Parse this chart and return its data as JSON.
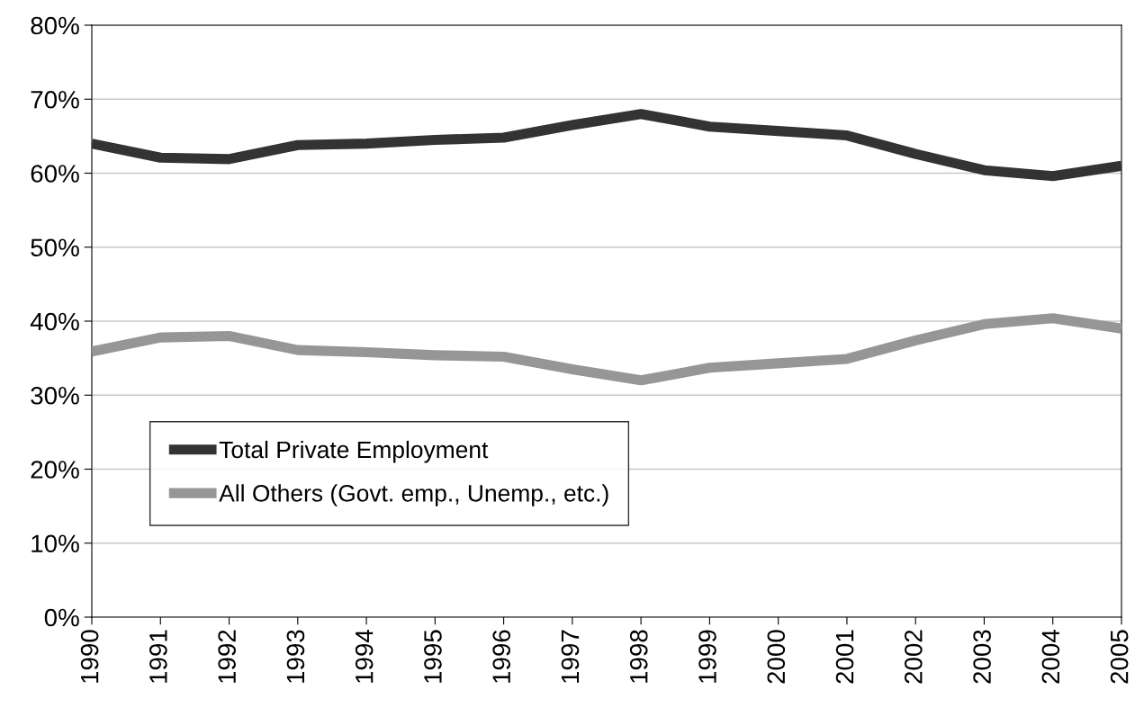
{
  "chart_data": {
    "type": "line",
    "categories": [
      "1990",
      "1991",
      "1992",
      "1993",
      "1994",
      "1995",
      "1996",
      "1997",
      "1998",
      "1999",
      "2000",
      "2001",
      "2002",
      "2003",
      "2004",
      "2005"
    ],
    "series": [
      {
        "name": "Total Private Employment",
        "color": "#333333",
        "values": [
          64.0,
          62.1,
          61.9,
          63.8,
          64.0,
          64.5,
          64.8,
          66.5,
          68.0,
          66.3,
          65.7,
          65.1,
          62.6,
          60.4,
          59.6,
          61.0
        ]
      },
      {
        "name": "All Others (Govt. emp., Unemp., etc.)",
        "color": "#969696",
        "values": [
          35.9,
          37.8,
          38.0,
          36.1,
          35.8,
          35.4,
          35.2,
          33.5,
          32.0,
          33.7,
          34.3,
          34.9,
          37.4,
          39.6,
          40.4,
          39.0
        ]
      }
    ],
    "ylim": [
      0,
      80
    ],
    "yticks": [
      {
        "value": 0,
        "label": "0%"
      },
      {
        "value": 10,
        "label": "10%"
      },
      {
        "value": 20,
        "label": "20%"
      },
      {
        "value": 30,
        "label": "30%"
      },
      {
        "value": 40,
        "label": "40%"
      },
      {
        "value": 50,
        "label": "50%"
      },
      {
        "value": 60,
        "label": "60%"
      },
      {
        "value": 70,
        "label": "70%"
      },
      {
        "value": 80,
        "label": "80%"
      }
    ],
    "grid": "y",
    "legend": "bottom left",
    "marker": "none",
    "line_style": "solid"
  }
}
